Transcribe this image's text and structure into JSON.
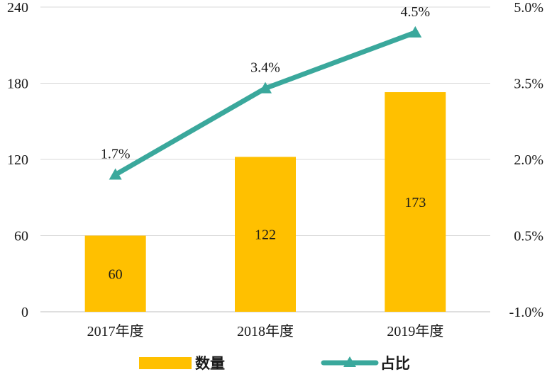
{
  "chart_data": {
    "type": "bar+line",
    "categories": [
      "2017年度",
      "2018年度",
      "2019年度"
    ],
    "series": [
      {
        "name": "数量",
        "type": "bar",
        "axis": "left",
        "values": [
          60,
          122,
          173
        ],
        "labels": [
          "60",
          "122",
          "173"
        ],
        "color": "#FFC000"
      },
      {
        "name": "占比",
        "type": "line",
        "axis": "right",
        "marker": "triangle",
        "values": [
          1.7,
          3.4,
          4.5
        ],
        "labels": [
          "1.7%",
          "3.4%",
          "4.5%"
        ],
        "color": "#3AA89C"
      }
    ],
    "y_left": {
      "ylim": [
        0,
        240
      ],
      "ticks": [
        0,
        60,
        120,
        180,
        240
      ],
      "tick_labels": [
        "0",
        "60",
        "120",
        "180",
        "240"
      ]
    },
    "y_right": {
      "ylim": [
        -1.0,
        5.0
      ],
      "ticks": [
        -1.0,
        0.5,
        2.0,
        3.5,
        5.0
      ],
      "tick_labels": [
        "-1.0%",
        "0.5%",
        "2.0%",
        "3.5%",
        "5.0%"
      ]
    },
    "grid": true,
    "legend_position": "bottom"
  }
}
